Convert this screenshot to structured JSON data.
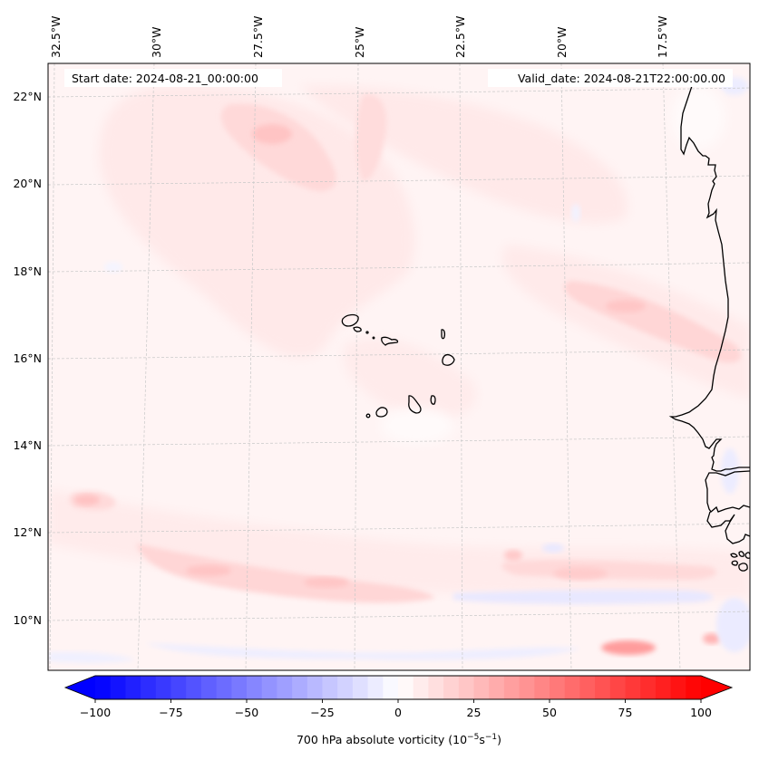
{
  "map": {
    "variable": "700 hPa absolute vorticity",
    "start_date_label": "Start date: 2024-08-21_00:00:00",
    "valid_date_label": "Valid_date: 2024-08-21T22:00:00.00",
    "lon_labels": [
      "32.5°W",
      "30°W",
      "27.5°W",
      "25°W",
      "22.5°W",
      "20°W",
      "17.5°W"
    ],
    "lon_values": [
      -32.5,
      -30,
      -27.5,
      -25,
      -22.5,
      -20,
      -17.5
    ],
    "lat_labels": [
      "22°N",
      "20°N",
      "18°N",
      "16°N",
      "14°N",
      "12°N",
      "10°N"
    ],
    "lat_values": [
      22,
      20,
      18,
      16,
      14,
      12,
      10
    ],
    "extent": {
      "lon_min": -33.0,
      "lon_max": -15.5,
      "lat_min": 9.0,
      "lat_max": 22.8
    },
    "features": [
      {
        "name": "vorticity-max-north",
        "lon": -26.5,
        "lat": 21.0,
        "value": 20
      },
      {
        "name": "vorticity-band-coastal",
        "lon": -18.5,
        "lat": 16.8,
        "value": 20
      },
      {
        "name": "vorticity-band-south",
        "lon": -26.0,
        "lat": 11.0,
        "value": 25
      },
      {
        "name": "vorticity-max-southeast",
        "lon": -18.0,
        "lat": 9.6,
        "value": 45
      },
      {
        "name": "vorticity-max-west",
        "lon": -32.0,
        "lat": 12.8,
        "value": 25
      },
      {
        "name": "negative-band-south",
        "lon": -22.0,
        "lat": 9.7,
        "value": -10
      }
    ],
    "coastline_label": "West Africa coastline",
    "islands_label": "Cape Verde islands"
  },
  "colorbar": {
    "label_main": "700 hPa absolute vorticity (10",
    "label_exp1": "−5",
    "label_mid": "s",
    "label_exp2": "−1",
    "label_close": ")",
    "ticks": [
      "−100",
      "−75",
      "−50",
      "−25",
      "0",
      "25",
      "50",
      "75",
      "100"
    ],
    "tick_values": [
      -100,
      -75,
      -50,
      -25,
      0,
      25,
      50,
      75,
      100
    ],
    "vmin": -100,
    "vmax": 100,
    "levels": 40,
    "cmap": "bwr",
    "extend": "both",
    "low_color": "#0000ff",
    "mid_color": "#ffffff",
    "high_color": "#ff0000"
  }
}
